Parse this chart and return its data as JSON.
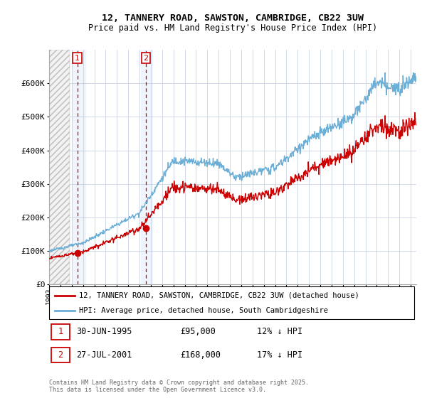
{
  "title": "12, TANNERY ROAD, SAWSTON, CAMBRIDGE, CB22 3UW",
  "subtitle": "Price paid vs. HM Land Registry's House Price Index (HPI)",
  "ylim": [
    0,
    700000
  ],
  "yticks": [
    0,
    100000,
    200000,
    300000,
    400000,
    500000,
    600000
  ],
  "ytick_labels": [
    "£0",
    "£100K",
    "£200K",
    "£300K",
    "£400K",
    "£500K",
    "£600K"
  ],
  "xlim_start": 1993.0,
  "xlim_end": 2025.5,
  "hpi_color": "#6baed6",
  "sale_color": "#cc0000",
  "legend_line1": "12, TANNERY ROAD, SAWSTON, CAMBRIDGE, CB22 3UW (detached house)",
  "legend_line2": "HPI: Average price, detached house, South Cambridgeshire",
  "sale1_date": 1995.49,
  "sale1_price": 95000,
  "sale1_label": "1",
  "sale2_date": 2001.56,
  "sale2_price": 168000,
  "sale2_label": "2",
  "footer": "Contains HM Land Registry data © Crown copyright and database right 2025.\nThis data is licensed under the Open Government Licence v3.0.",
  "grid_color": "#d0d8e8",
  "hatch_end": 1994.8,
  "blue_span1_start": 1995.0,
  "blue_span1_end": 1996.3,
  "blue_span2_start": 2001.1,
  "blue_span2_end": 2002.2
}
